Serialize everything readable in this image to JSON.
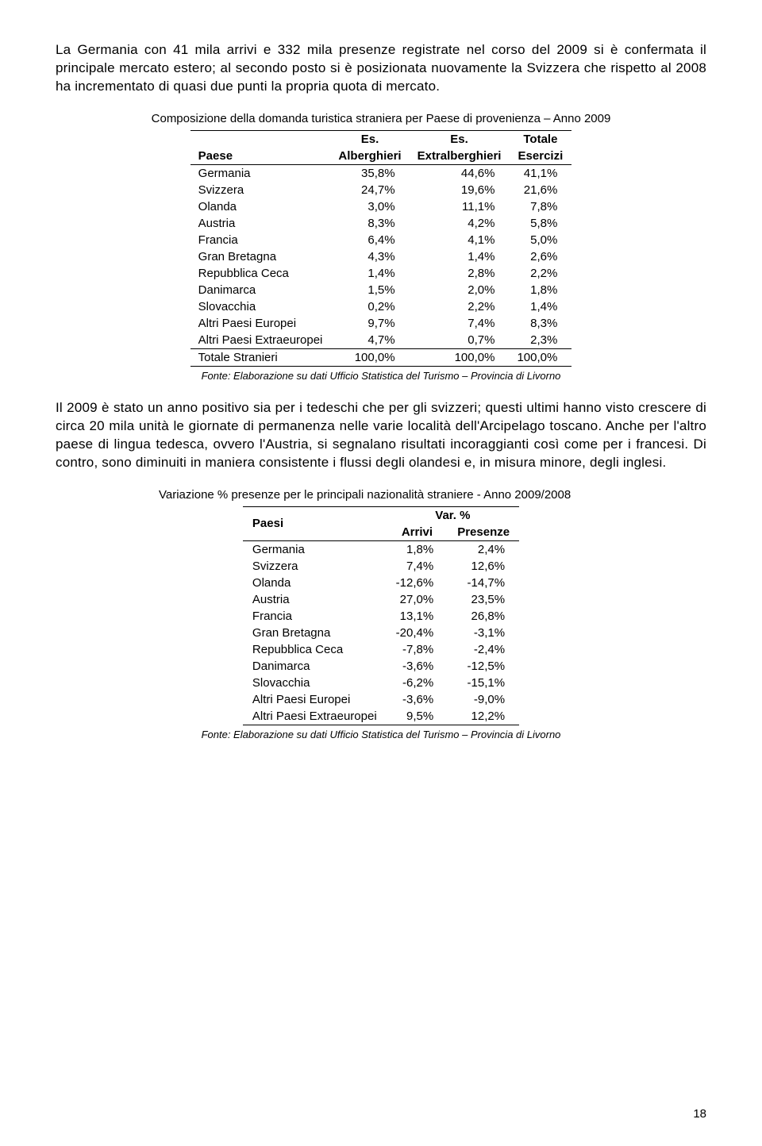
{
  "para1": "La Germania con 41 mila arrivi e 332 mila presenze registrate nel corso del 2009 si è confermata il principale mercato estero; al secondo posto si è posizionata nuovamente la Svizzera che rispetto al 2008 ha incrementato di quasi due punti la propria quota di mercato.",
  "table1": {
    "title": "Composizione della domanda turistica straniera per Paese di provenienza – Anno 2009",
    "columns": {
      "c0": "Paese",
      "c1a": "Es.",
      "c1b": "Alberghieri",
      "c2a": "Es.",
      "c2b": "Extralberghieri",
      "c3a": "Totale",
      "c3b": "Esercizi"
    },
    "rows": [
      {
        "label": "Germania",
        "v1": "35,8%",
        "v2": "44,6%",
        "v3": "41,1%"
      },
      {
        "label": "Svizzera",
        "v1": "24,7%",
        "v2": "19,6%",
        "v3": "21,6%"
      },
      {
        "label": "Olanda",
        "v1": "3,0%",
        "v2": "11,1%",
        "v3": "7,8%"
      },
      {
        "label": "Austria",
        "v1": "8,3%",
        "v2": "4,2%",
        "v3": "5,8%"
      },
      {
        "label": "Francia",
        "v1": "6,4%",
        "v2": "4,1%",
        "v3": "5,0%"
      },
      {
        "label": "Gran Bretagna",
        "v1": "4,3%",
        "v2": "1,4%",
        "v3": "2,6%"
      },
      {
        "label": "Repubblica Ceca",
        "v1": "1,4%",
        "v2": "2,8%",
        "v3": "2,2%"
      },
      {
        "label": "Danimarca",
        "v1": "1,5%",
        "v2": "2,0%",
        "v3": "1,8%"
      },
      {
        "label": "Slovacchia",
        "v1": "0,2%",
        "v2": "2,2%",
        "v3": "1,4%"
      },
      {
        "label": "Altri Paesi Europei",
        "v1": "9,7%",
        "v2": "7,4%",
        "v3": "8,3%"
      },
      {
        "label": "Altri Paesi Extraeuropei",
        "v1": "4,7%",
        "v2": "0,7%",
        "v3": "2,3%"
      }
    ],
    "total": {
      "label": "Totale Stranieri",
      "v1": "100,0%",
      "v2": "100,0%",
      "v3": "100,0%"
    },
    "caption": "Fonte: Elaborazione su dati Ufficio Statistica del Turismo – Provincia di Livorno"
  },
  "para2": "Il 2009 è stato un anno positivo sia per i tedeschi che per gli svizzeri; questi ultimi hanno visto crescere di circa 20 mila unità le giornate di permanenza nelle varie località dell'Arcipelago toscano. Anche per l'altro paese di lingua tedesca, ovvero l'Austria, si segnalano risultati incoraggianti così come per i francesi. Di contro, sono diminuiti in maniera consistente i flussi degli olandesi e, in misura minore, degli inglesi.",
  "table2": {
    "title": "Variazione % presenze per le principali nazionalità straniere - Anno 2009/2008",
    "columns": {
      "c0": "Paesi",
      "ctop": "Var. %",
      "c1": "Arrivi",
      "c2": "Presenze"
    },
    "rows": [
      {
        "label": "Germania",
        "v1": "1,8%",
        "v2": "2,4%"
      },
      {
        "label": "Svizzera",
        "v1": "7,4%",
        "v2": "12,6%"
      },
      {
        "label": "Olanda",
        "v1": "-12,6%",
        "v2": "-14,7%"
      },
      {
        "label": "Austria",
        "v1": "27,0%",
        "v2": "23,5%"
      },
      {
        "label": "Francia",
        "v1": "13,1%",
        "v2": "26,8%"
      },
      {
        "label": "Gran Bretagna",
        "v1": "-20,4%",
        "v2": "-3,1%"
      },
      {
        "label": "Repubblica Ceca",
        "v1": "-7,8%",
        "v2": "-2,4%"
      },
      {
        "label": "Danimarca",
        "v1": "-3,6%",
        "v2": "-12,5%"
      },
      {
        "label": "Slovacchia",
        "v1": "-6,2%",
        "v2": "-15,1%"
      },
      {
        "label": "Altri Paesi Europei",
        "v1": "-3,6%",
        "v2": "-9,0%"
      },
      {
        "label": "Altri Paesi Extraeuropei",
        "v1": "9,5%",
        "v2": "12,2%"
      }
    ],
    "caption": "Fonte: Elaborazione su dati Ufficio Statistica del Turismo – Provincia di Livorno"
  },
  "pageNumber": "18"
}
